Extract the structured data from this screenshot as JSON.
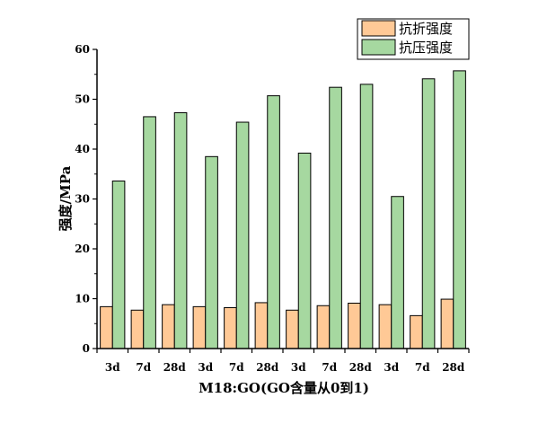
{
  "chart_data": {
    "type": "bar",
    "categories": [
      "3d",
      "7d",
      "28d",
      "3d",
      "7d",
      "28d",
      "3d",
      "7d",
      "28d",
      "3d",
      "7d",
      "28d"
    ],
    "series": [
      {
        "name": "抗折强度",
        "color": "#ffc996",
        "values": [
          8.4,
          7.7,
          8.8,
          8.4,
          8.2,
          9.2,
          7.7,
          8.6,
          9.1,
          8.8,
          6.6,
          9.9
        ]
      },
      {
        "name": "抗压强度",
        "color": "#a6d8a0",
        "values": [
          33.6,
          46.5,
          47.3,
          38.5,
          45.4,
          50.7,
          39.2,
          52.4,
          53.0,
          30.5,
          54.1,
          55.7
        ]
      }
    ],
    "xlabel": "M18:GO(GO含量从0到1)",
    "ylabel": "强度/MPa",
    "ylim": [
      0,
      60
    ],
    "yticks": [
      0,
      10,
      20,
      30,
      40,
      50,
      60
    ],
    "legend_position": "top-right",
    "grid": false
  }
}
